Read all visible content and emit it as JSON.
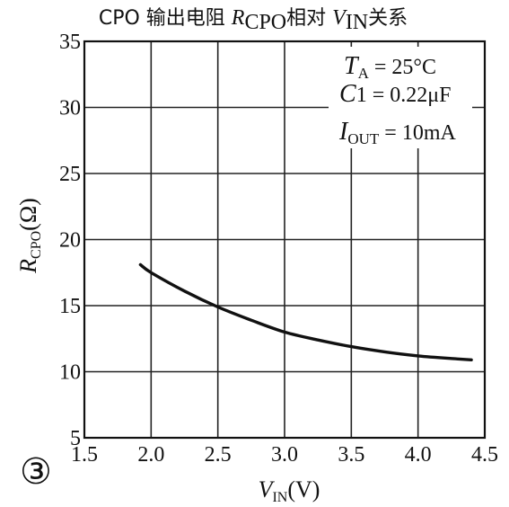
{
  "chart_data": {
    "type": "line",
    "title": "CPO 输出电阻 R_CPO相对 V_IN关系",
    "title_parts": {
      "a": "CPO 输出电阻 ",
      "r": "R",
      "r_sub": "CPO",
      "b": "相对 ",
      "v": "V",
      "v_sub": "IN",
      "c": "关系"
    },
    "xlabel": "V_IN(V)",
    "xlabel_parts": {
      "v": "V",
      "sub": "IN",
      "unit": "(V)"
    },
    "ylabel": "R_CPO(Ω)",
    "ylabel_parts": {
      "r": "R",
      "sub": "CPO",
      "unit": "(Ω)"
    },
    "xlim": [
      1.5,
      4.5
    ],
    "ylim": [
      5,
      35
    ],
    "x_ticks": [
      "1.5",
      "2.0",
      "2.5",
      "3.0",
      "3.5",
      "4.0",
      "4.5"
    ],
    "y_ticks": [
      "5",
      "10",
      "15",
      "20",
      "25",
      "30",
      "35"
    ],
    "grid": true,
    "series": [
      {
        "x": [
          1.92,
          2.0,
          2.25,
          2.5,
          2.75,
          3.0,
          3.25,
          3.5,
          3.75,
          4.0,
          4.25,
          4.4
        ],
        "y": [
          18.1,
          17.5,
          16.1,
          14.9,
          13.9,
          13.0,
          12.4,
          11.9,
          11.5,
          11.2,
          11.0,
          10.9
        ]
      }
    ],
    "annotations": {
      "ta": {
        "sym": "T",
        "sub": "A",
        "val": " = 25°C"
      },
      "c1": {
        "sym": "C",
        "val": "1 = 0.22μF"
      },
      "iout": {
        "sym": "I",
        "sub": "OUT",
        "val": " = 10mA"
      }
    }
  },
  "badge": "③"
}
